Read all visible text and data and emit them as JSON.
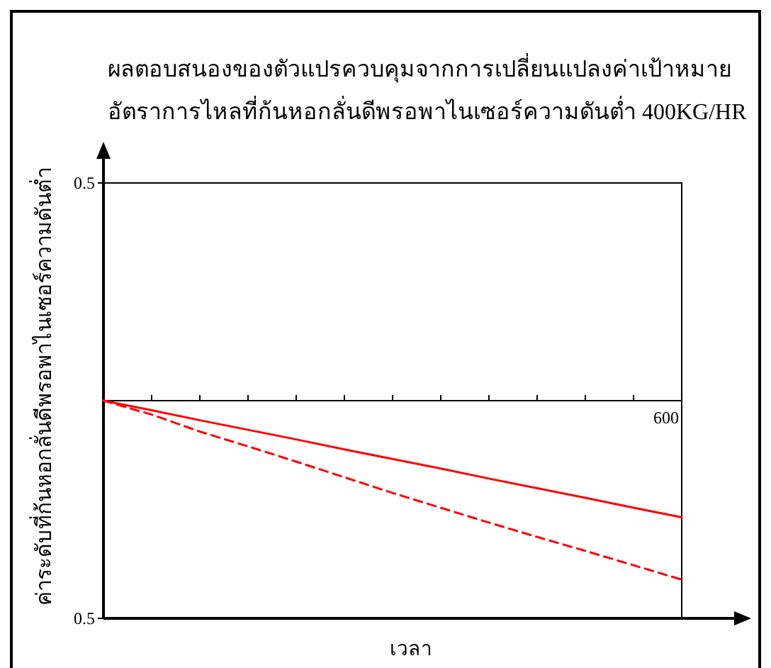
{
  "chart_data": {
    "type": "line",
    "title": "ผลตอบสนองของตัวแปรควบคุมจากการเปลี่ยนแปลงค่าเป้าหมาย",
    "subtitle": "อัตราการไหลที่ก้นหอกลั่นดีพรอพาไนเซอร์ความดันต่ำ 400KG/HR",
    "xlabel": "เวลา",
    "ylabel": "ค่าระดับที่ก้นหอกลั่นดีพรอพาไนเซอร์ความดันต่ำ",
    "annotations": [
      "600"
    ],
    "categories": [
      null,
      null,
      null,
      null,
      null,
      null,
      null,
      null,
      null,
      null,
      null,
      null,
      null
    ],
    "ylim": [
      -0.5,
      0.5
    ],
    "yticks": [
      {
        "value": -0.5,
        "label": "0.5"
      },
      {
        "value": 0.5,
        "label": "0.5"
      }
    ],
    "grid": false,
    "series": [
      {
        "color": "#ff0000",
        "line_style": "solid",
        "values": [
          0,
          -0.022,
          -0.045,
          -0.067,
          -0.089,
          -0.112,
          -0.134,
          -0.156,
          -0.179,
          -0.201,
          -0.223,
          -0.246,
          -0.268
        ]
      },
      {
        "color": "#ff0000",
        "line_style": "dashed",
        "values": [
          0,
          -0.032,
          -0.071,
          -0.105,
          -0.14,
          -0.176,
          -0.212,
          -0.246,
          -0.28,
          -0.313,
          -0.345,
          -0.378,
          -0.411
        ]
      }
    ]
  }
}
